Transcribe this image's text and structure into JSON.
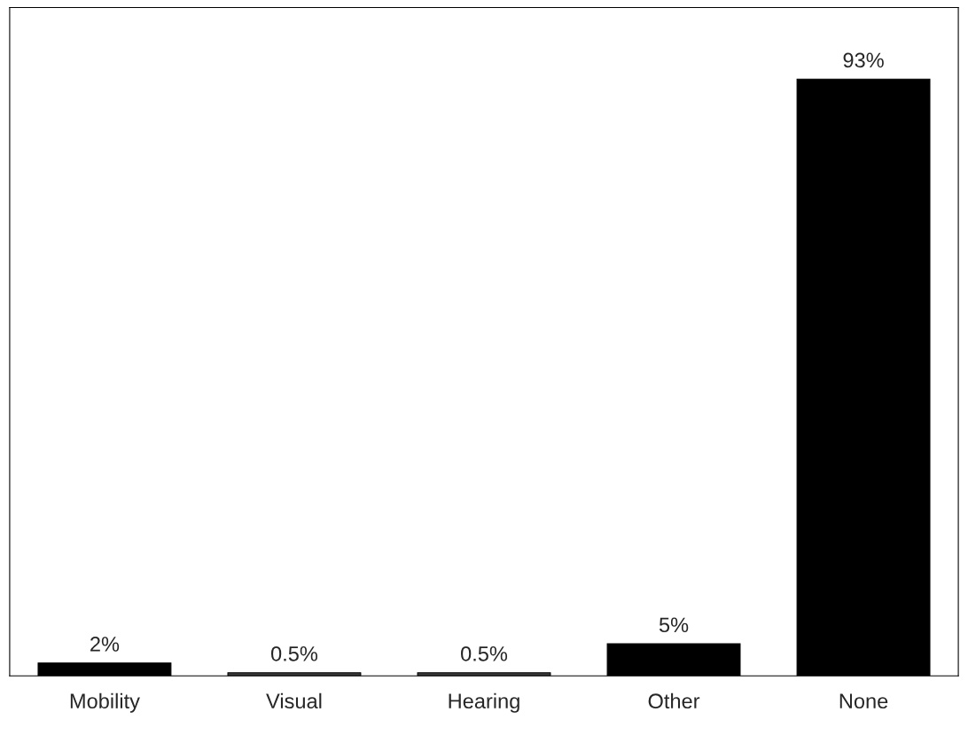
{
  "chart_data": {
    "type": "bar",
    "categories": [
      "Mobility",
      "Visual",
      "Hearing",
      "Other",
      "None"
    ],
    "values": [
      2,
      0.5,
      0.5,
      5,
      93
    ],
    "colors": [
      "#000000",
      "#3a3a3a",
      "#3a3a3a",
      "#000000",
      "#000000"
    ],
    "value_labels": [
      "2%",
      "0.5%",
      "0.5%",
      "5%",
      "93%"
    ],
    "tick_labels": "x"
  }
}
